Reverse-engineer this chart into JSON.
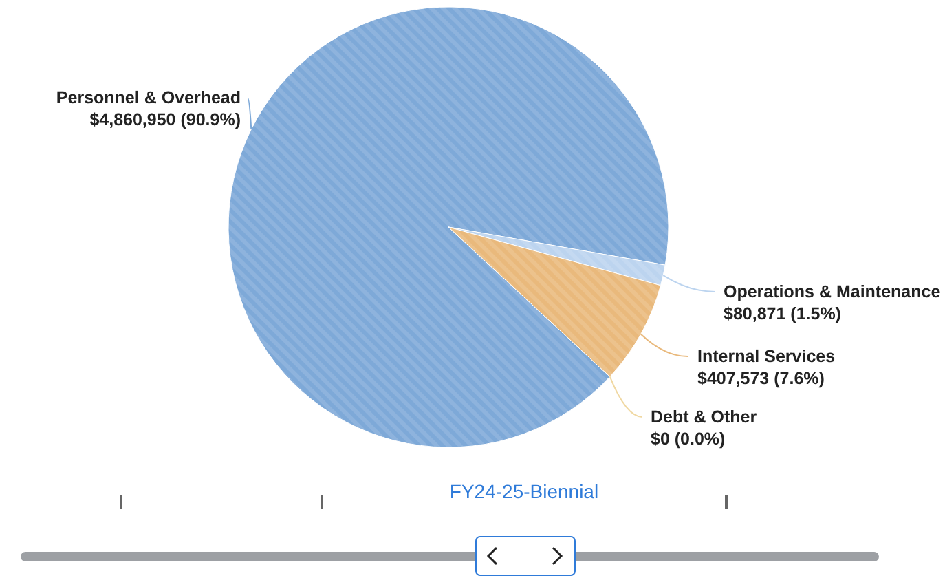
{
  "chart_data": {
    "type": "pie",
    "title": "FY24-25-Biennial",
    "categories": [
      "Personnel & Overhead",
      "Operations & Maintenance",
      "Internal Services",
      "Debt & Other"
    ],
    "values": [
      4860950,
      80871,
      407573,
      0
    ],
    "colors": [
      "#7ea9d8",
      "#bcd4ef",
      "#e9b97c",
      "#f0d8a2"
    ],
    "value_labels": [
      "$4,860,950 (90.9%)",
      "$80,871 (1.5%)",
      "$407,573 (7.6%)",
      "$0 (0.0%)"
    ]
  }
}
